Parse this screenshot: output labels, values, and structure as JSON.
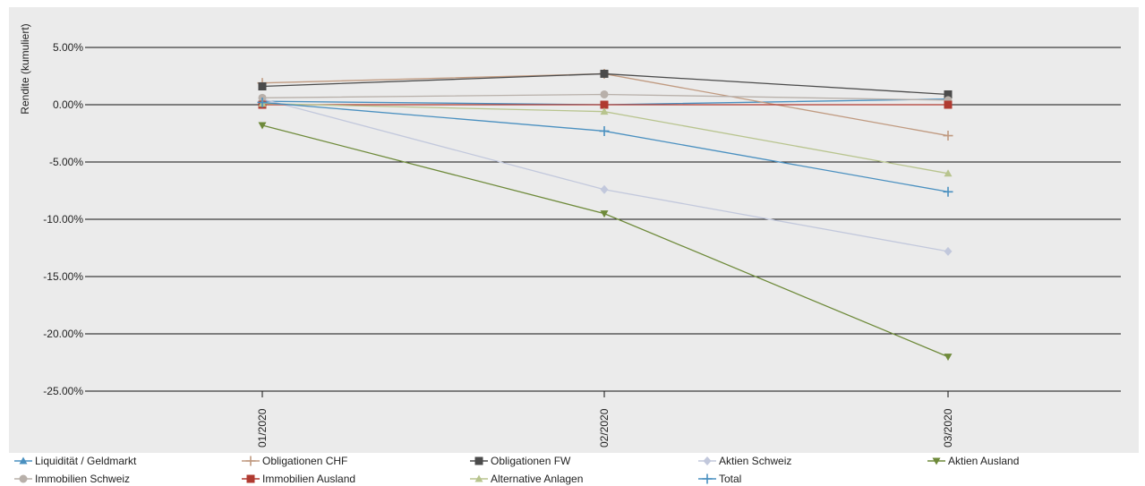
{
  "chart_data": {
    "type": "line",
    "title": "",
    "xlabel": "",
    "ylabel": "Rendite (kumuliert)",
    "x": [
      "01/2020",
      "02/2020",
      "03/2020"
    ],
    "ylim": [
      -25,
      5
    ],
    "yticks": [
      5,
      0,
      -5,
      -10,
      -15,
      -20,
      -25
    ],
    "ytick_labels": [
      "5.00%",
      "0.00%",
      "-5.00%",
      "-10.00%",
      "-15.00%",
      "-20.00%",
      "-25.00%"
    ],
    "grid": "horizontal",
    "legend_position": "bottom",
    "background": "#ebebeb",
    "series": [
      {
        "name": "Liquidität / Geldmarkt",
        "values": [
          0.3,
          0.0,
          0.5
        ],
        "color": "#4a90c0",
        "marker": "triangle-up"
      },
      {
        "name": "Obligationen CHF",
        "values": [
          1.9,
          2.7,
          -2.7
        ],
        "color": "#c09a80",
        "marker": "plus"
      },
      {
        "name": "Obligationen FW",
        "values": [
          1.6,
          2.7,
          0.9
        ],
        "color": "#4b4b4b",
        "marker": "square"
      },
      {
        "name": "Aktien Schweiz",
        "values": [
          0.5,
          -7.4,
          -12.8
        ],
        "color": "#c2c8dc",
        "marker": "diamond"
      },
      {
        "name": "Aktien Ausland",
        "values": [
          -1.8,
          -9.5,
          -22.0
        ],
        "color": "#6e8a3a",
        "marker": "triangle-down"
      },
      {
        "name": "Immobilien Schweiz",
        "values": [
          0.6,
          0.9,
          0.4
        ],
        "color": "#b8b0aa",
        "marker": "circle"
      },
      {
        "name": "Immobilien Ausland",
        "values": [
          0.0,
          0.0,
          0.0
        ],
        "color": "#b03a30",
        "marker": "square"
      },
      {
        "name": "Alternative Anlagen",
        "values": [
          0.1,
          -0.6,
          -6.0
        ],
        "color": "#b8c48e",
        "marker": "triangle-up"
      },
      {
        "name": "Total",
        "values": [
          0.2,
          -2.3,
          -7.6
        ],
        "color": "#4a90c0",
        "marker": "plus"
      }
    ]
  }
}
